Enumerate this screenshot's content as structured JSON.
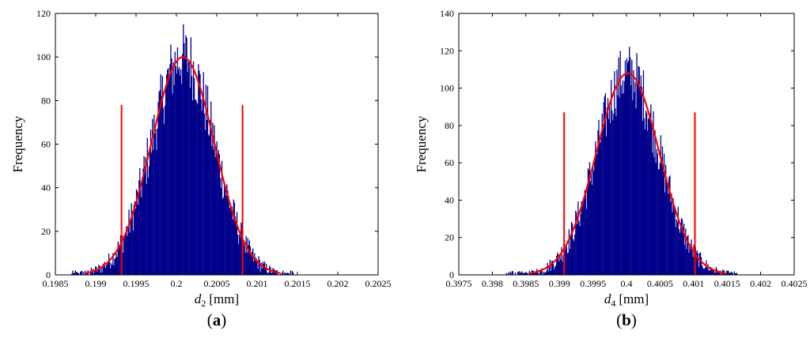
{
  "chart_data": [
    {
      "type": "bar",
      "panel_label": "(a)",
      "panel_letter": "a",
      "xlabel_var": "d",
      "xlabel_sub": "2",
      "xlabel_unit": "[mm]",
      "ylabel": "Frequency",
      "xlim": [
        0.1985,
        0.2025
      ],
      "ylim": [
        0,
        120
      ],
      "xticks": [
        "0.1985",
        "0.199",
        "0.1995",
        "0.2",
        "0.2005",
        "0.201",
        "0.2015",
        "0.202",
        "0.2025"
      ],
      "yticks": [
        "0",
        "20",
        "40",
        "60",
        "80",
        "100",
        "120"
      ],
      "histogram": {
        "mean": 0.20008,
        "std": 0.00039,
        "peak": 100,
        "range": [
          0.1987,
          0.20145
        ],
        "bins": 265,
        "max_observed": 118
      },
      "fit_curve": {
        "mean": 0.20008,
        "std": 0.00039,
        "peak": 100
      },
      "limit_lines": [
        {
          "x": 0.19932,
          "height": 78
        },
        {
          "x": 0.20082,
          "height": 78
        }
      ],
      "colors": {
        "bars": "#00008b",
        "fit": "#ff0000",
        "limits": "#ff0000"
      }
    },
    {
      "type": "bar",
      "panel_label": "(b)",
      "panel_letter": "b",
      "xlabel_var": "d",
      "xlabel_sub": "4",
      "xlabel_unit": "[mm]",
      "ylabel": "Frequency",
      "xlim": [
        0.3975,
        0.4025
      ],
      "ylim": [
        0,
        140
      ],
      "xticks": [
        "0.3975",
        "0.398",
        "0.3985",
        "0.399",
        "0.3995",
        "0.4",
        "0.4005",
        "0.401",
        "0.4015",
        "0.402",
        "0.4025"
      ],
      "yticks": [
        "0",
        "20",
        "40",
        "60",
        "80",
        "100",
        "120",
        "140"
      ],
      "histogram": {
        "mean": 0.40002,
        "std": 0.00047,
        "peak": 108,
        "range": [
          0.3982,
          0.40165
        ],
        "bins": 280,
        "max_observed": 130
      },
      "fit_curve": {
        "mean": 0.40002,
        "std": 0.00047,
        "peak": 108
      },
      "limit_lines": [
        {
          "x": 0.39907,
          "height": 87
        },
        {
          "x": 0.40102,
          "height": 87
        }
      ],
      "colors": {
        "bars": "#00008b",
        "fit": "#ff0000",
        "limits": "#ff0000"
      }
    }
  ]
}
